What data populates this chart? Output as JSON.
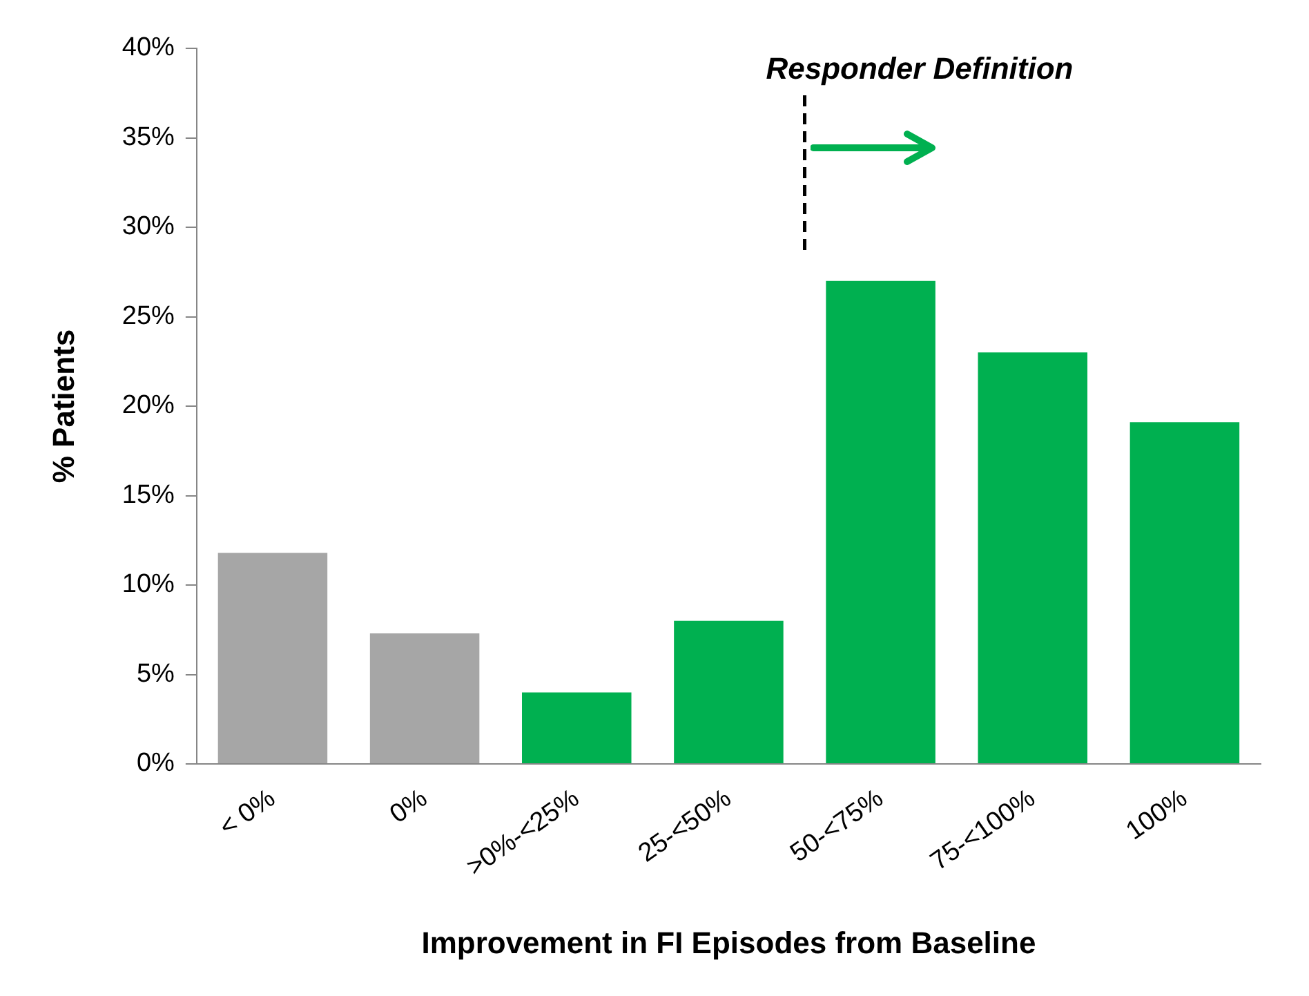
{
  "chart_data": {
    "type": "bar",
    "xlabel": "Improvement in FI Episodes from Baseline",
    "ylabel": "% Patients",
    "categories": [
      "< 0%",
      "0%",
      ">0%-<25%",
      "25-<50%",
      "50-<75%",
      "75-<100%",
      "100%"
    ],
    "values": [
      11.8,
      7.3,
      4.0,
      8.0,
      27.0,
      23.0,
      19.1
    ],
    "colors": [
      "#a6a6a6",
      "#a6a6a6",
      "#00b050",
      "#00b050",
      "#00b050",
      "#00b050",
      "#00b050"
    ],
    "ylim": [
      0,
      40
    ],
    "yticks": [
      {
        "value": 0,
        "label": "0%"
      },
      {
        "value": 5,
        "label": "5%"
      },
      {
        "value": 10,
        "label": "10%"
      },
      {
        "value": 15,
        "label": "15%"
      },
      {
        "value": 20,
        "label": "20%"
      },
      {
        "value": 25,
        "label": "25%"
      },
      {
        "value": 30,
        "label": "30%"
      },
      {
        "value": 35,
        "label": "35%"
      },
      {
        "value": 40,
        "label": "40%"
      }
    ],
    "ref_lines": [
      {
        "axis": "x",
        "value": "50-<75%",
        "label": "Responder Definition",
        "color": "#000000",
        "line_style": "dashed"
      }
    ],
    "grid": false,
    "legend": false
  }
}
